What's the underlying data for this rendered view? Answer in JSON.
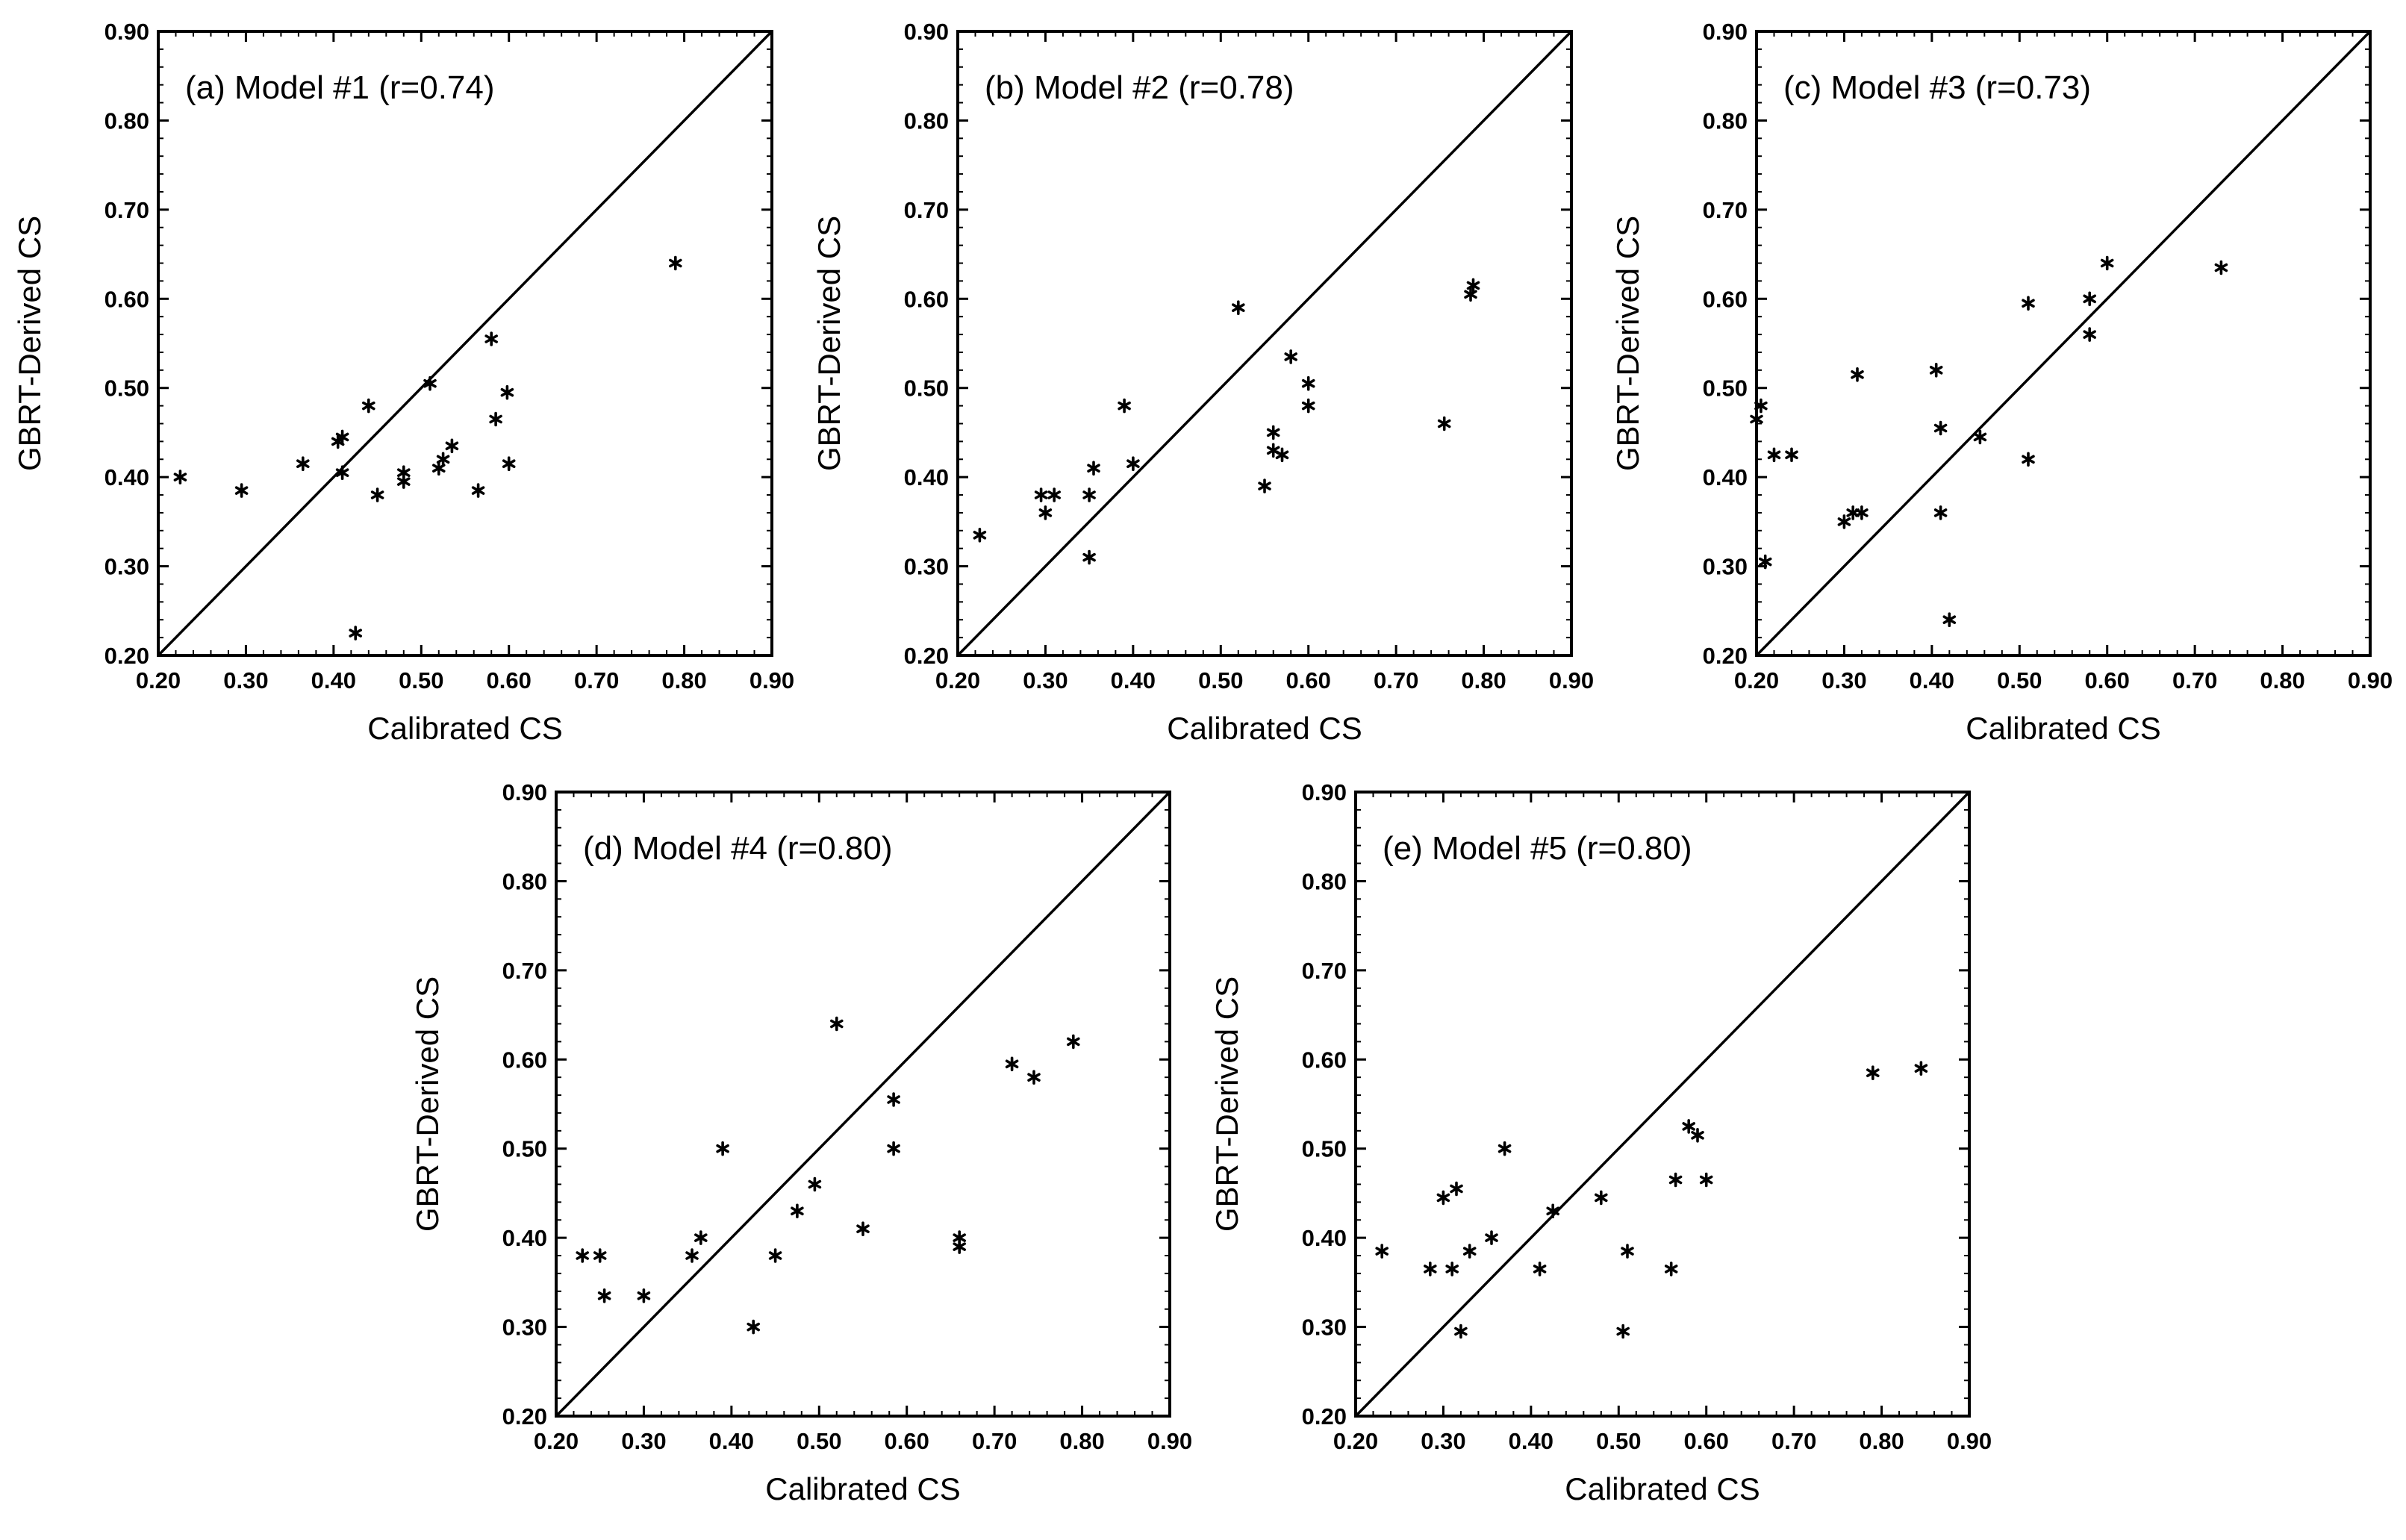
{
  "figure_style": {
    "marker_color": "#000000",
    "frame_color": "#000000",
    "background": "#ffffff"
  },
  "chart_data": [
    {
      "type": "scatter",
      "title": "(a) Model #1 (r=0.74)",
      "xlabel": "Calibrated CS",
      "ylabel": "GBRT-Derived CS",
      "xlim": [
        0.2,
        0.9
      ],
      "ylim": [
        0.2,
        0.9
      ],
      "xticks": [
        "0.20",
        "0.30",
        "0.40",
        "0.50",
        "0.60",
        "0.70",
        "0.80",
        "0.90"
      ],
      "yticks": [
        "0.20",
        "0.30",
        "0.40",
        "0.50",
        "0.60",
        "0.70",
        "0.80",
        "0.90"
      ],
      "reference_line": "1:1",
      "points": [
        [
          0.225,
          0.4
        ],
        [
          0.295,
          0.385
        ],
        [
          0.365,
          0.415
        ],
        [
          0.405,
          0.44
        ],
        [
          0.41,
          0.445
        ],
        [
          0.41,
          0.405
        ],
        [
          0.44,
          0.48
        ],
        [
          0.45,
          0.38
        ],
        [
          0.48,
          0.405
        ],
        [
          0.48,
          0.395
        ],
        [
          0.51,
          0.505
        ],
        [
          0.52,
          0.41
        ],
        [
          0.525,
          0.42
        ],
        [
          0.535,
          0.435
        ],
        [
          0.565,
          0.385
        ],
        [
          0.58,
          0.555
        ],
        [
          0.585,
          0.465
        ],
        [
          0.598,
          0.495
        ],
        [
          0.6,
          0.415
        ],
        [
          0.425,
          0.225
        ],
        [
          0.79,
          0.64
        ]
      ]
    },
    {
      "type": "scatter",
      "title": "(b) Model #2 (r=0.78)",
      "xlabel": "Calibrated CS",
      "ylabel": "GBRT-Derived CS",
      "xlim": [
        0.2,
        0.9
      ],
      "ylim": [
        0.2,
        0.9
      ],
      "xticks": [
        "0.20",
        "0.30",
        "0.40",
        "0.50",
        "0.60",
        "0.70",
        "0.80",
        "0.90"
      ],
      "yticks": [
        "0.20",
        "0.30",
        "0.40",
        "0.50",
        "0.60",
        "0.70",
        "0.80",
        "0.90"
      ],
      "reference_line": "1:1",
      "points": [
        [
          0.225,
          0.335
        ],
        [
          0.295,
          0.38
        ],
        [
          0.3,
          0.36
        ],
        [
          0.31,
          0.38
        ],
        [
          0.35,
          0.31
        ],
        [
          0.35,
          0.38
        ],
        [
          0.355,
          0.41
        ],
        [
          0.39,
          0.48
        ],
        [
          0.4,
          0.415
        ],
        [
          0.52,
          0.59
        ],
        [
          0.55,
          0.39
        ],
        [
          0.56,
          0.45
        ],
        [
          0.56,
          0.43
        ],
        [
          0.57,
          0.425
        ],
        [
          0.58,
          0.535
        ],
        [
          0.6,
          0.505
        ],
        [
          0.6,
          0.48
        ],
        [
          0.755,
          0.46
        ],
        [
          0.785,
          0.605
        ],
        [
          0.788,
          0.615
        ]
      ]
    },
    {
      "type": "scatter",
      "title": "(c) Model #3 (r=0.73)",
      "xlabel": "Calibrated CS",
      "ylabel": "GBRT-Derived CS",
      "xlim": [
        0.2,
        0.9
      ],
      "ylim": [
        0.2,
        0.9
      ],
      "xticks": [
        "0.20",
        "0.30",
        "0.40",
        "0.50",
        "0.60",
        "0.70",
        "0.80",
        "0.90"
      ],
      "yticks": [
        "0.20",
        "0.30",
        "0.40",
        "0.50",
        "0.60",
        "0.70",
        "0.80",
        "0.90"
      ],
      "reference_line": "1:1",
      "points": [
        [
          0.2,
          0.465
        ],
        [
          0.205,
          0.48
        ],
        [
          0.21,
          0.305
        ],
        [
          0.22,
          0.425
        ],
        [
          0.24,
          0.425
        ],
        [
          0.3,
          0.35
        ],
        [
          0.31,
          0.36
        ],
        [
          0.32,
          0.36
        ],
        [
          0.315,
          0.515
        ],
        [
          0.405,
          0.52
        ],
        [
          0.41,
          0.455
        ],
        [
          0.41,
          0.36
        ],
        [
          0.42,
          0.24
        ],
        [
          0.455,
          0.445
        ],
        [
          0.51,
          0.595
        ],
        [
          0.51,
          0.42
        ],
        [
          0.58,
          0.6
        ],
        [
          0.58,
          0.56
        ],
        [
          0.6,
          0.64
        ],
        [
          0.73,
          0.635
        ]
      ]
    },
    {
      "type": "scatter",
      "title": "(d) Model #4 (r=0.80)",
      "xlabel": "Calibrated CS",
      "ylabel": "GBRT-Derived CS",
      "xlim": [
        0.2,
        0.9
      ],
      "ylim": [
        0.2,
        0.9
      ],
      "xticks": [
        "0.20",
        "0.30",
        "0.40",
        "0.50",
        "0.60",
        "0.70",
        "0.80",
        "0.90"
      ],
      "yticks": [
        "0.20",
        "0.30",
        "0.40",
        "0.50",
        "0.60",
        "0.70",
        "0.80",
        "0.90"
      ],
      "reference_line": "1:1",
      "points": [
        [
          0.23,
          0.38
        ],
        [
          0.25,
          0.38
        ],
        [
          0.255,
          0.335
        ],
        [
          0.3,
          0.335
        ],
        [
          0.355,
          0.38
        ],
        [
          0.365,
          0.4
        ],
        [
          0.39,
          0.5
        ],
        [
          0.425,
          0.3
        ],
        [
          0.45,
          0.38
        ],
        [
          0.475,
          0.43
        ],
        [
          0.495,
          0.46
        ],
        [
          0.52,
          0.64
        ],
        [
          0.55,
          0.41
        ],
        [
          0.585,
          0.555
        ],
        [
          0.585,
          0.5
        ],
        [
          0.66,
          0.4
        ],
        [
          0.66,
          0.39
        ],
        [
          0.72,
          0.595
        ],
        [
          0.745,
          0.58
        ],
        [
          0.79,
          0.62
        ]
      ]
    },
    {
      "type": "scatter",
      "title": "(e) Model #5 (r=0.80)",
      "xlabel": "Calibrated CS",
      "ylabel": "GBRT-Derived CS",
      "xlim": [
        0.2,
        0.9
      ],
      "ylim": [
        0.2,
        0.9
      ],
      "xticks": [
        "0.20",
        "0.30",
        "0.40",
        "0.50",
        "0.60",
        "0.70",
        "0.80",
        "0.90"
      ],
      "yticks": [
        "0.20",
        "0.30",
        "0.40",
        "0.50",
        "0.60",
        "0.70",
        "0.80",
        "0.90"
      ],
      "reference_line": "1:1",
      "points": [
        [
          0.23,
          0.385
        ],
        [
          0.285,
          0.365
        ],
        [
          0.3,
          0.445
        ],
        [
          0.31,
          0.365
        ],
        [
          0.315,
          0.455
        ],
        [
          0.32,
          0.295
        ],
        [
          0.33,
          0.385
        ],
        [
          0.355,
          0.4
        ],
        [
          0.37,
          0.5
        ],
        [
          0.41,
          0.365
        ],
        [
          0.425,
          0.43
        ],
        [
          0.48,
          0.445
        ],
        [
          0.505,
          0.295
        ],
        [
          0.51,
          0.385
        ],
        [
          0.56,
          0.365
        ],
        [
          0.565,
          0.465
        ],
        [
          0.58,
          0.525
        ],
        [
          0.59,
          0.515
        ],
        [
          0.6,
          0.465
        ],
        [
          0.79,
          0.585
        ],
        [
          0.845,
          0.59
        ]
      ]
    }
  ]
}
